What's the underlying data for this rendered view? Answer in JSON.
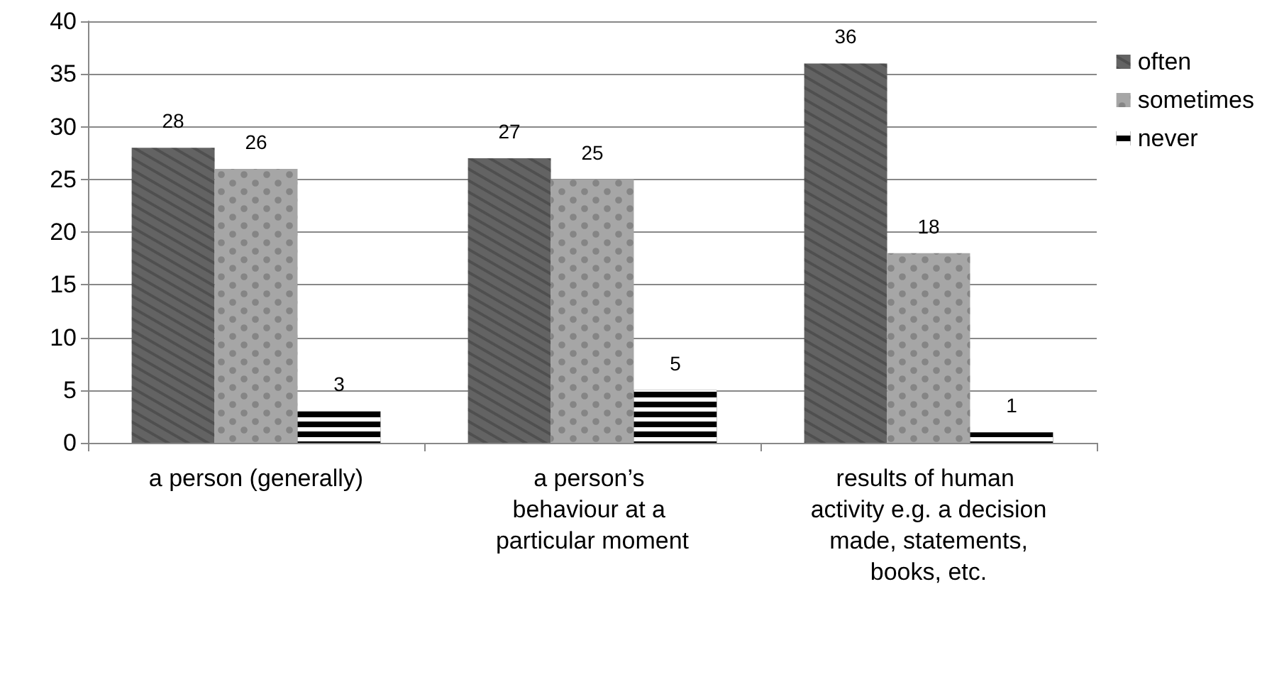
{
  "chart_data": {
    "type": "bar",
    "categories": [
      "a person (generally)",
      "a person’s behaviour at a particular moment",
      "results of human activity e.g. a decision made, statements, books, etc."
    ],
    "series": [
      {
        "name": "often",
        "color": "#636363",
        "values": [
          28,
          27,
          36
        ]
      },
      {
        "name": "sometimes",
        "color": "#a6a6a6",
        "values": [
          26,
          25,
          18
        ]
      },
      {
        "name": "never",
        "color": "#000000",
        "values": [
          3,
          5,
          1
        ]
      }
    ],
    "ylim": [
      0,
      40
    ],
    "yticks": [
      0,
      5,
      10,
      15,
      20,
      25,
      30,
      35,
      40
    ],
    "grid": "y",
    "legend": "top right",
    "data_labels": true
  }
}
